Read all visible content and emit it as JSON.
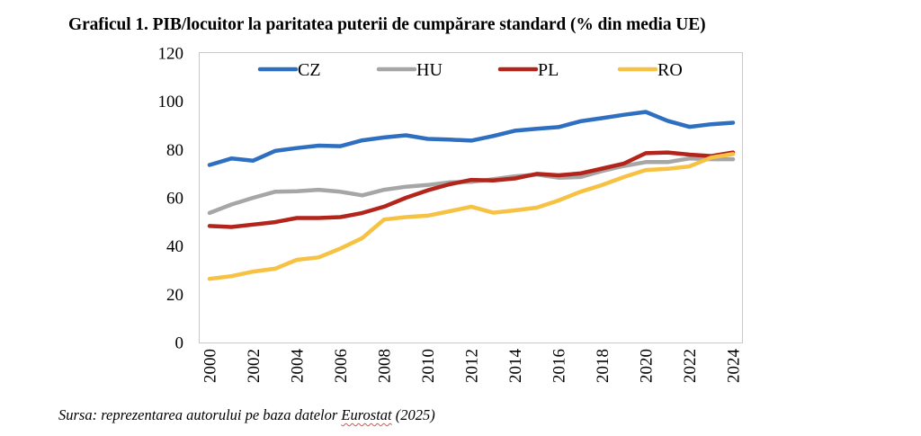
{
  "title": "Graficul 1. PIB/locuitor la paritatea puterii de cumpărare standard (% din media UE)",
  "source": {
    "prefix": "Sursa: reprezentarea autorului pe baza datelor ",
    "underlined": "Eurostat",
    "suffix": " (2025)"
  },
  "chart_data": {
    "type": "line",
    "title": "Graficul 1. PIB/locuitor la paritatea puterii de cumpărare standard (% din media UE)",
    "xlabel": "",
    "ylabel": "",
    "x": [
      2000,
      2001,
      2002,
      2003,
      2004,
      2005,
      2006,
      2007,
      2008,
      2009,
      2010,
      2011,
      2012,
      2013,
      2014,
      2015,
      2016,
      2017,
      2018,
      2019,
      2020,
      2021,
      2022,
      2023,
      2024
    ],
    "x_tick_labels": [
      "2000",
      "2002",
      "2004",
      "2006",
      "2008",
      "2010",
      "2012",
      "2014",
      "2016",
      "2018",
      "2020",
      "2022",
      "2024"
    ],
    "y_tick_labels": [
      "0",
      "20",
      "40",
      "60",
      "80",
      "100",
      "120"
    ],
    "ylim": [
      0,
      120
    ],
    "grid": false,
    "legend_position": "top",
    "series": [
      {
        "name": "CZ",
        "color": "#2F6FC2",
        "values": [
          73.6,
          76.3,
          75.4,
          79.4,
          80.6,
          81.6,
          81.4,
          83.8,
          85.0,
          85.9,
          84.4,
          84.1,
          83.7,
          85.6,
          87.8,
          88.6,
          89.3,
          91.7,
          93.0,
          94.4,
          95.6,
          91.9,
          89.4,
          90.5,
          91.1
        ]
      },
      {
        "name": "HU",
        "color": "#A6A6A6",
        "values": [
          53.7,
          57.2,
          60.0,
          62.5,
          62.7,
          63.3,
          62.5,
          61.0,
          63.3,
          64.6,
          65.3,
          66.4,
          66.6,
          67.7,
          68.9,
          69.6,
          68.3,
          68.6,
          71.1,
          73.2,
          74.8,
          74.8,
          76.3,
          76.0,
          76.0
        ]
      },
      {
        "name": "PL",
        "color": "#B3241B",
        "values": [
          48.3,
          47.9,
          48.9,
          49.9,
          51.6,
          51.6,
          52.0,
          53.7,
          56.3,
          60.0,
          63.1,
          65.6,
          67.4,
          67.2,
          68.0,
          69.9,
          69.3,
          70.1,
          72.1,
          74.2,
          78.5,
          78.8,
          77.9,
          77.3,
          78.8
        ]
      },
      {
        "name": "RO",
        "color": "#F6C243",
        "values": [
          26.4,
          27.5,
          29.4,
          30.6,
          34.3,
          35.3,
          39.0,
          43.3,
          51.0,
          52.0,
          52.6,
          54.4,
          56.3,
          53.8,
          54.8,
          55.9,
          58.9,
          62.5,
          65.3,
          68.6,
          71.5,
          72.0,
          73.0,
          76.7,
          78.1
        ]
      }
    ]
  }
}
